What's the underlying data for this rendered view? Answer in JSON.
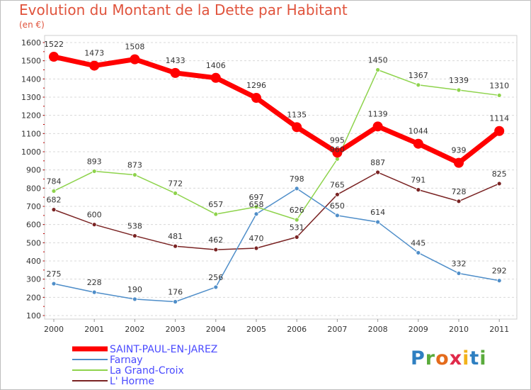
{
  "header": {
    "title": "Evolution du Montant de la Dette par Habitant",
    "unit": "(en €)"
  },
  "logo": {
    "letters": [
      "P",
      "r",
      "o",
      "x",
      "i",
      "t",
      "i"
    ],
    "colors": [
      "#2e7fc1",
      "#5aab3c",
      "#e46b1c",
      "#e02a4a",
      "#f2b21b",
      "#2e7fc1",
      "#5aab3c"
    ]
  },
  "chart_data": {
    "type": "line",
    "title": "Evolution du Montant de la Dette par Habitant",
    "ylabel": "(en €)",
    "xlabel": "",
    "x": [
      "2000",
      "2001",
      "2002",
      "2003",
      "2004",
      "2005",
      "2006",
      "2007",
      "2008",
      "2009",
      "2010",
      "2011"
    ],
    "ylim": [
      100,
      1600
    ],
    "yticks": [
      100,
      200,
      300,
      400,
      500,
      600,
      700,
      800,
      900,
      1000,
      1100,
      1200,
      1300,
      1400,
      1500,
      1600
    ],
    "grid": "horizontal dashed",
    "legend": "bottom-left",
    "series": [
      {
        "name": "SAINT-PAUL-EN-JAREZ",
        "color": "#ff0000",
        "values": [
          1522,
          1473,
          1508,
          1433,
          1406,
          1296,
          1135,
          995,
          1139,
          1044,
          939,
          1114
        ]
      },
      {
        "name": "Farnay",
        "color": "#4f8ec9",
        "values": [
          275,
          228,
          190,
          176,
          256,
          658,
          798,
          650,
          614,
          445,
          332,
          292
        ]
      },
      {
        "name": "La Grand-Croix",
        "color": "#8ed34c",
        "values": [
          784,
          893,
          873,
          772,
          657,
          697,
          626,
          960,
          1450,
          1367,
          1339,
          1310
        ]
      },
      {
        "name": "L' Horme",
        "color": "#7a2323",
        "values": [
          682,
          600,
          538,
          481,
          462,
          470,
          531,
          765,
          887,
          791,
          728,
          825
        ]
      }
    ],
    "data_labels": [
      [
        "1522",
        "1473",
        "1508",
        "1433",
        "1406",
        "1296",
        "1135",
        "995",
        "1139",
        "1044",
        "939",
        "1114"
      ],
      [
        "275",
        "228",
        "190",
        "176",
        "256",
        "658",
        "798",
        "650",
        "614",
        "445",
        "332",
        "292"
      ],
      [
        "784",
        "893",
        "873",
        "772",
        "657",
        "697",
        "626",
        "960",
        "1450",
        "1367",
        "1339",
        "1310"
      ],
      [
        "682",
        "600",
        "538",
        "481",
        "462",
        "470",
        "531",
        "765",
        "887",
        "791",
        "728",
        "825"
      ]
    ]
  }
}
